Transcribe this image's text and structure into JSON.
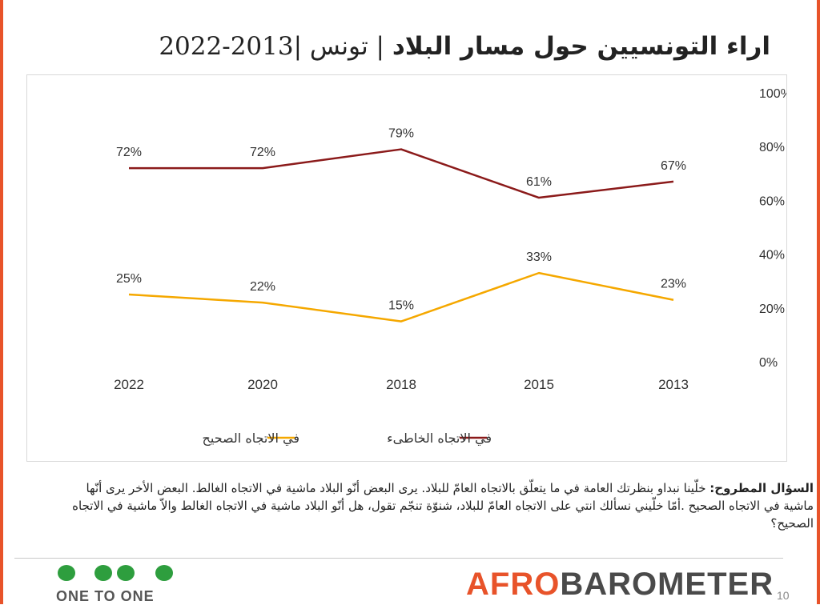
{
  "title": {
    "arabic": "اراء التونسيين حول مسار البلاد",
    "subtitle": "| تونس |2013-2022"
  },
  "chart_data": {
    "type": "line",
    "categories": [
      "2022",
      "2020",
      "2018",
      "2015",
      "2013"
    ],
    "ylim": [
      0,
      100
    ],
    "yticks": [
      "0%",
      "20%",
      "40%",
      "60%",
      "80%",
      "100%"
    ],
    "grid": false,
    "legend_position": "bottom",
    "series": [
      {
        "name": "في الاتجاه الخاطىء",
        "color": "#8b1a1a",
        "values": [
          72,
          72,
          79,
          61,
          67
        ],
        "labels": [
          "72%",
          "72%",
          "79%",
          "61%",
          "67%"
        ]
      },
      {
        "name": "في الاتجاه الصحيح",
        "color": "#f5a800",
        "values": [
          25,
          22,
          15,
          33,
          23
        ],
        "labels": [
          "25%",
          "22%",
          "15%",
          "33%",
          "23%"
        ]
      }
    ]
  },
  "question": {
    "label": "السؤال المطروح:",
    "text": "خلّينا نبداو بنظرتك العامة في ما يتعلّق بالاتجاه العامّ للبلاد. يرى البعض أنّو البلاد ماشية في الاتجاه الغالط. البعض الأخر يرى أنّها ماشية في الاتجاه الصحيح .أمّا خلّيني نسألك انتي على الاتجاه العامّ للبلاد، شنوّة تنجّم تقول، هل أنّو البلاد ماشية في الاتجاه الغالط والاّ ماشية في الاتجاه الصحيح؟"
  },
  "footer": {
    "one_to_one": "ONE TO ONE",
    "logo_part1": "AFRO",
    "logo_part2": "BAROMETER",
    "page_number": "10"
  },
  "colors": {
    "accent": "#e8532a",
    "dots": "#2e9e3e"
  }
}
